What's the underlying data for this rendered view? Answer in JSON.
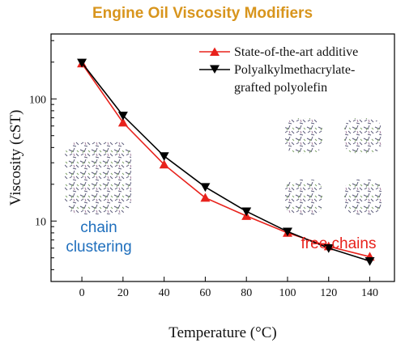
{
  "chart_data": {
    "type": "line",
    "title": "Engine Oil Viscosity Modifiers",
    "xlabel": "Temperature (°C)",
    "ylabel": "Viscosity (cST)",
    "x": [
      0,
      20,
      40,
      60,
      80,
      100,
      120,
      140
    ],
    "xlim": [
      -15,
      152
    ],
    "ylim": [
      3.2,
      340
    ],
    "yscale": "log",
    "xticks": [
      "0",
      "20",
      "40",
      "60",
      "80",
      "100",
      "120",
      "140"
    ],
    "yticks": [
      {
        "value": 10,
        "label": "10"
      },
      {
        "value": 100,
        "label": "100"
      }
    ],
    "grid": false,
    "legend_position": "top-right",
    "series": [
      {
        "name": "State-of-the-art additive",
        "color": "#e8221c",
        "marker": "triangle-up",
        "values": [
          195,
          64,
          29,
          15.5,
          11,
          8,
          6.2,
          5.1
        ]
      },
      {
        "name_lines": [
          "Polyalkylmethacrylate-",
          "grafted polyolefin"
        ],
        "color": "#000000",
        "marker": "triangle-down",
        "values": [
          198,
          73,
          34,
          19,
          12,
          8.2,
          6.0,
          4.7
        ]
      }
    ],
    "annotations": [
      {
        "lines": [
          "chain",
          "clustering"
        ],
        "color": "#1f6fbd"
      },
      {
        "lines": [
          "free chains"
        ],
        "color": "#e8221c"
      }
    ]
  }
}
